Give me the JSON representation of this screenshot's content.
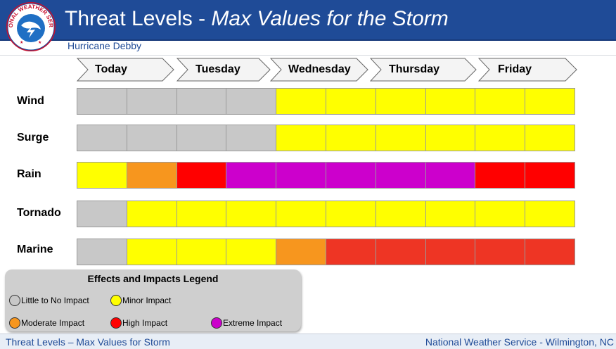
{
  "header": {
    "title_main": "Threat Levels - ",
    "title_italic": "Max Values for the Storm",
    "logo_text": "NATIONAL WEATHER SERVICE",
    "subtitle": "Hurricane Debby"
  },
  "colors": {
    "none": "#c8c8c8",
    "minor": "#ffff00",
    "moderate": "#f7961e",
    "high": "#ff0000",
    "high_marine": "#ee3524",
    "extreme": "#cc00cc",
    "header_blue": "#1f4b97"
  },
  "days": [
    "Today",
    "Tuesday",
    "Wednesday",
    "Thursday",
    "Friday"
  ],
  "threats": [
    {
      "label": "Wind",
      "levels": [
        "none",
        "none",
        "none",
        "none",
        "minor",
        "minor",
        "minor",
        "minor",
        "minor",
        "minor"
      ]
    },
    {
      "label": "Surge",
      "levels": [
        "none",
        "none",
        "none",
        "none",
        "minor",
        "minor",
        "minor",
        "minor",
        "minor",
        "minor"
      ]
    },
    {
      "label": "Rain",
      "levels": [
        "minor",
        "moderate",
        "high",
        "extreme",
        "extreme",
        "extreme",
        "extreme",
        "extreme",
        "high",
        "high"
      ]
    },
    {
      "label": "Tornado",
      "levels": [
        "none",
        "minor",
        "minor",
        "minor",
        "minor",
        "minor",
        "minor",
        "minor",
        "minor",
        "minor"
      ]
    },
    {
      "label": "Marine",
      "levels": [
        "none",
        "minor",
        "minor",
        "minor",
        "moderate",
        "high_marine",
        "high_marine",
        "high_marine",
        "high_marine",
        "high_marine"
      ]
    }
  ],
  "legend": {
    "title": "Effects and Impacts Legend",
    "items": [
      {
        "label": "Little to No Impact",
        "color": "#c8c8c8"
      },
      {
        "label": "Minor Impact",
        "color": "#ffff00"
      },
      {
        "label": "Moderate Impact",
        "color": "#f7961e"
      },
      {
        "label": "High Impact",
        "color": "#ff0000"
      },
      {
        "label": "Extreme Impact",
        "color": "#cc00cc"
      }
    ]
  },
  "footer": {
    "left": "Threat Levels – Max Values for Storm",
    "right": "National Weather Service - Wilmington, NC"
  }
}
